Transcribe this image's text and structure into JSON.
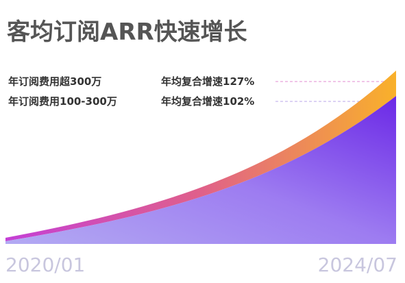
{
  "title": "客均订阅ARR快速增长",
  "series": [
    {
      "name": "年订阅费用超300万",
      "growth": "年均复合增速127%"
    },
    {
      "name": "年订阅费用100-300万",
      "growth": "年均复合增速102%"
    }
  ],
  "x_labels": [
    "2020/01",
    "2024/07"
  ]
}
